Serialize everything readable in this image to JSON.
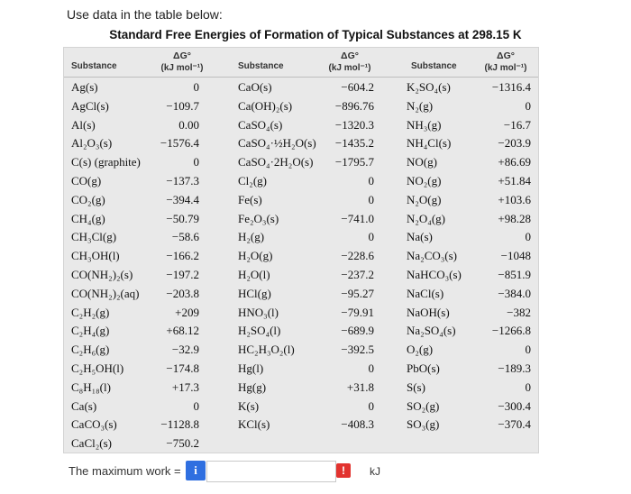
{
  "prompt": "Use data in the table below:",
  "table": {
    "title": "Standard Free Energies of Formation of Typical Substances at 298.15 K",
    "header_substance": "Substance",
    "header_delta": "ΔG°",
    "header_unit": "(kJ mol⁻¹)",
    "columns": [
      {
        "rows": [
          {
            "s": "Ag(s)",
            "v": "0"
          },
          {
            "s": "AgCl(s)",
            "v": "−109.7"
          },
          {
            "s": "Al(s)",
            "v": "0.00"
          },
          {
            "s": "Al₂O₃(s)",
            "v": "−1576.4"
          },
          {
            "s": "C(s) (graphite)",
            "v": "0"
          },
          {
            "s": "CO(g)",
            "v": "−137.3"
          },
          {
            "s": "CO₂(g)",
            "v": "−394.4"
          },
          {
            "s": "CH₄(g)",
            "v": "−50.79"
          },
          {
            "s": "CH₃Cl(g)",
            "v": "−58.6"
          },
          {
            "s": "CH₃OH(l)",
            "v": "−166.2"
          },
          {
            "s": "CO(NH₂)₂(s)",
            "v": "−197.2"
          },
          {
            "s": "CO(NH₂)₂(aq)",
            "v": "−203.8"
          },
          {
            "s": "C₂H₂(g)",
            "v": "+209"
          },
          {
            "s": "C₂H₄(g)",
            "v": "+68.12"
          },
          {
            "s": "C₂H₆(g)",
            "v": "−32.9"
          },
          {
            "s": "C₂H₅OH(l)",
            "v": "−174.8"
          },
          {
            "s": "C₈H₁₈(l)",
            "v": "+17.3"
          },
          {
            "s": "Ca(s)",
            "v": "0"
          },
          {
            "s": "CaCO₃(s)",
            "v": "−1128.8"
          },
          {
            "s": "CaCl₂(s)",
            "v": "−750.2"
          }
        ]
      },
      {
        "rows": [
          {
            "s": "CaO(s)",
            "v": "−604.2"
          },
          {
            "s": "Ca(OH)₂(s)",
            "v": "−896.76"
          },
          {
            "s": "CaSO₄(s)",
            "v": "−1320.3"
          },
          {
            "s": "CaSO₄·½H₂O(s)",
            "v": "−1435.2"
          },
          {
            "s": "CaSO₄·2H₂O(s)",
            "v": "−1795.7"
          },
          {
            "s": "Cl₂(g)",
            "v": "0"
          },
          {
            "s": "Fe(s)",
            "v": "0"
          },
          {
            "s": "Fe₂O₃(s)",
            "v": "−741.0"
          },
          {
            "s": "H₂(g)",
            "v": "0"
          },
          {
            "s": "H₂O(g)",
            "v": "−228.6"
          },
          {
            "s": "H₂O(l)",
            "v": "−237.2"
          },
          {
            "s": "HCl(g)",
            "v": "−95.27"
          },
          {
            "s": "HNO₃(l)",
            "v": "−79.91"
          },
          {
            "s": "H₂SO₄(l)",
            "v": "−689.9"
          },
          {
            "s": "HC₂H₃O₂(l)",
            "v": "−392.5"
          },
          {
            "s": "Hg(l)",
            "v": "0"
          },
          {
            "s": "Hg(g)",
            "v": "+31.8"
          },
          {
            "s": "K(s)",
            "v": "0"
          },
          {
            "s": "KCl(s)",
            "v": "−408.3"
          }
        ]
      },
      {
        "rows": [
          {
            "s": "K₂SO₄(s)",
            "v": "−1316.4"
          },
          {
            "s": "N₂(g)",
            "v": "0"
          },
          {
            "s": "NH₃(g)",
            "v": "−16.7"
          },
          {
            "s": "NH₄Cl(s)",
            "v": "−203.9"
          },
          {
            "s": "NO(g)",
            "v": "+86.69"
          },
          {
            "s": "NO₂(g)",
            "v": "+51.84"
          },
          {
            "s": "N₂O(g)",
            "v": "+103.6"
          },
          {
            "s": "N₂O₄(g)",
            "v": "+98.28"
          },
          {
            "s": "Na(s)",
            "v": "0"
          },
          {
            "s": "Na₂CO₃(s)",
            "v": "−1048"
          },
          {
            "s": "NaHCO₃(s)",
            "v": "−851.9"
          },
          {
            "s": "NaCl(s)",
            "v": "−384.0"
          },
          {
            "s": "NaOH(s)",
            "v": "−382"
          },
          {
            "s": "Na₂SO₄(s)",
            "v": "−1266.8"
          },
          {
            "s": "O₂(g)",
            "v": "0"
          },
          {
            "s": "PbO(s)",
            "v": "−189.3"
          },
          {
            "s": "S(s)",
            "v": "0"
          },
          {
            "s": "SO₂(g)",
            "v": "−300.4"
          },
          {
            "s": "SO₃(g)",
            "v": "−370.4"
          }
        ]
      }
    ]
  },
  "answer": {
    "label": "The maximum work =",
    "info_icon_text": "i",
    "value": "",
    "warning_icon_text": "!",
    "unit": "kJ"
  }
}
